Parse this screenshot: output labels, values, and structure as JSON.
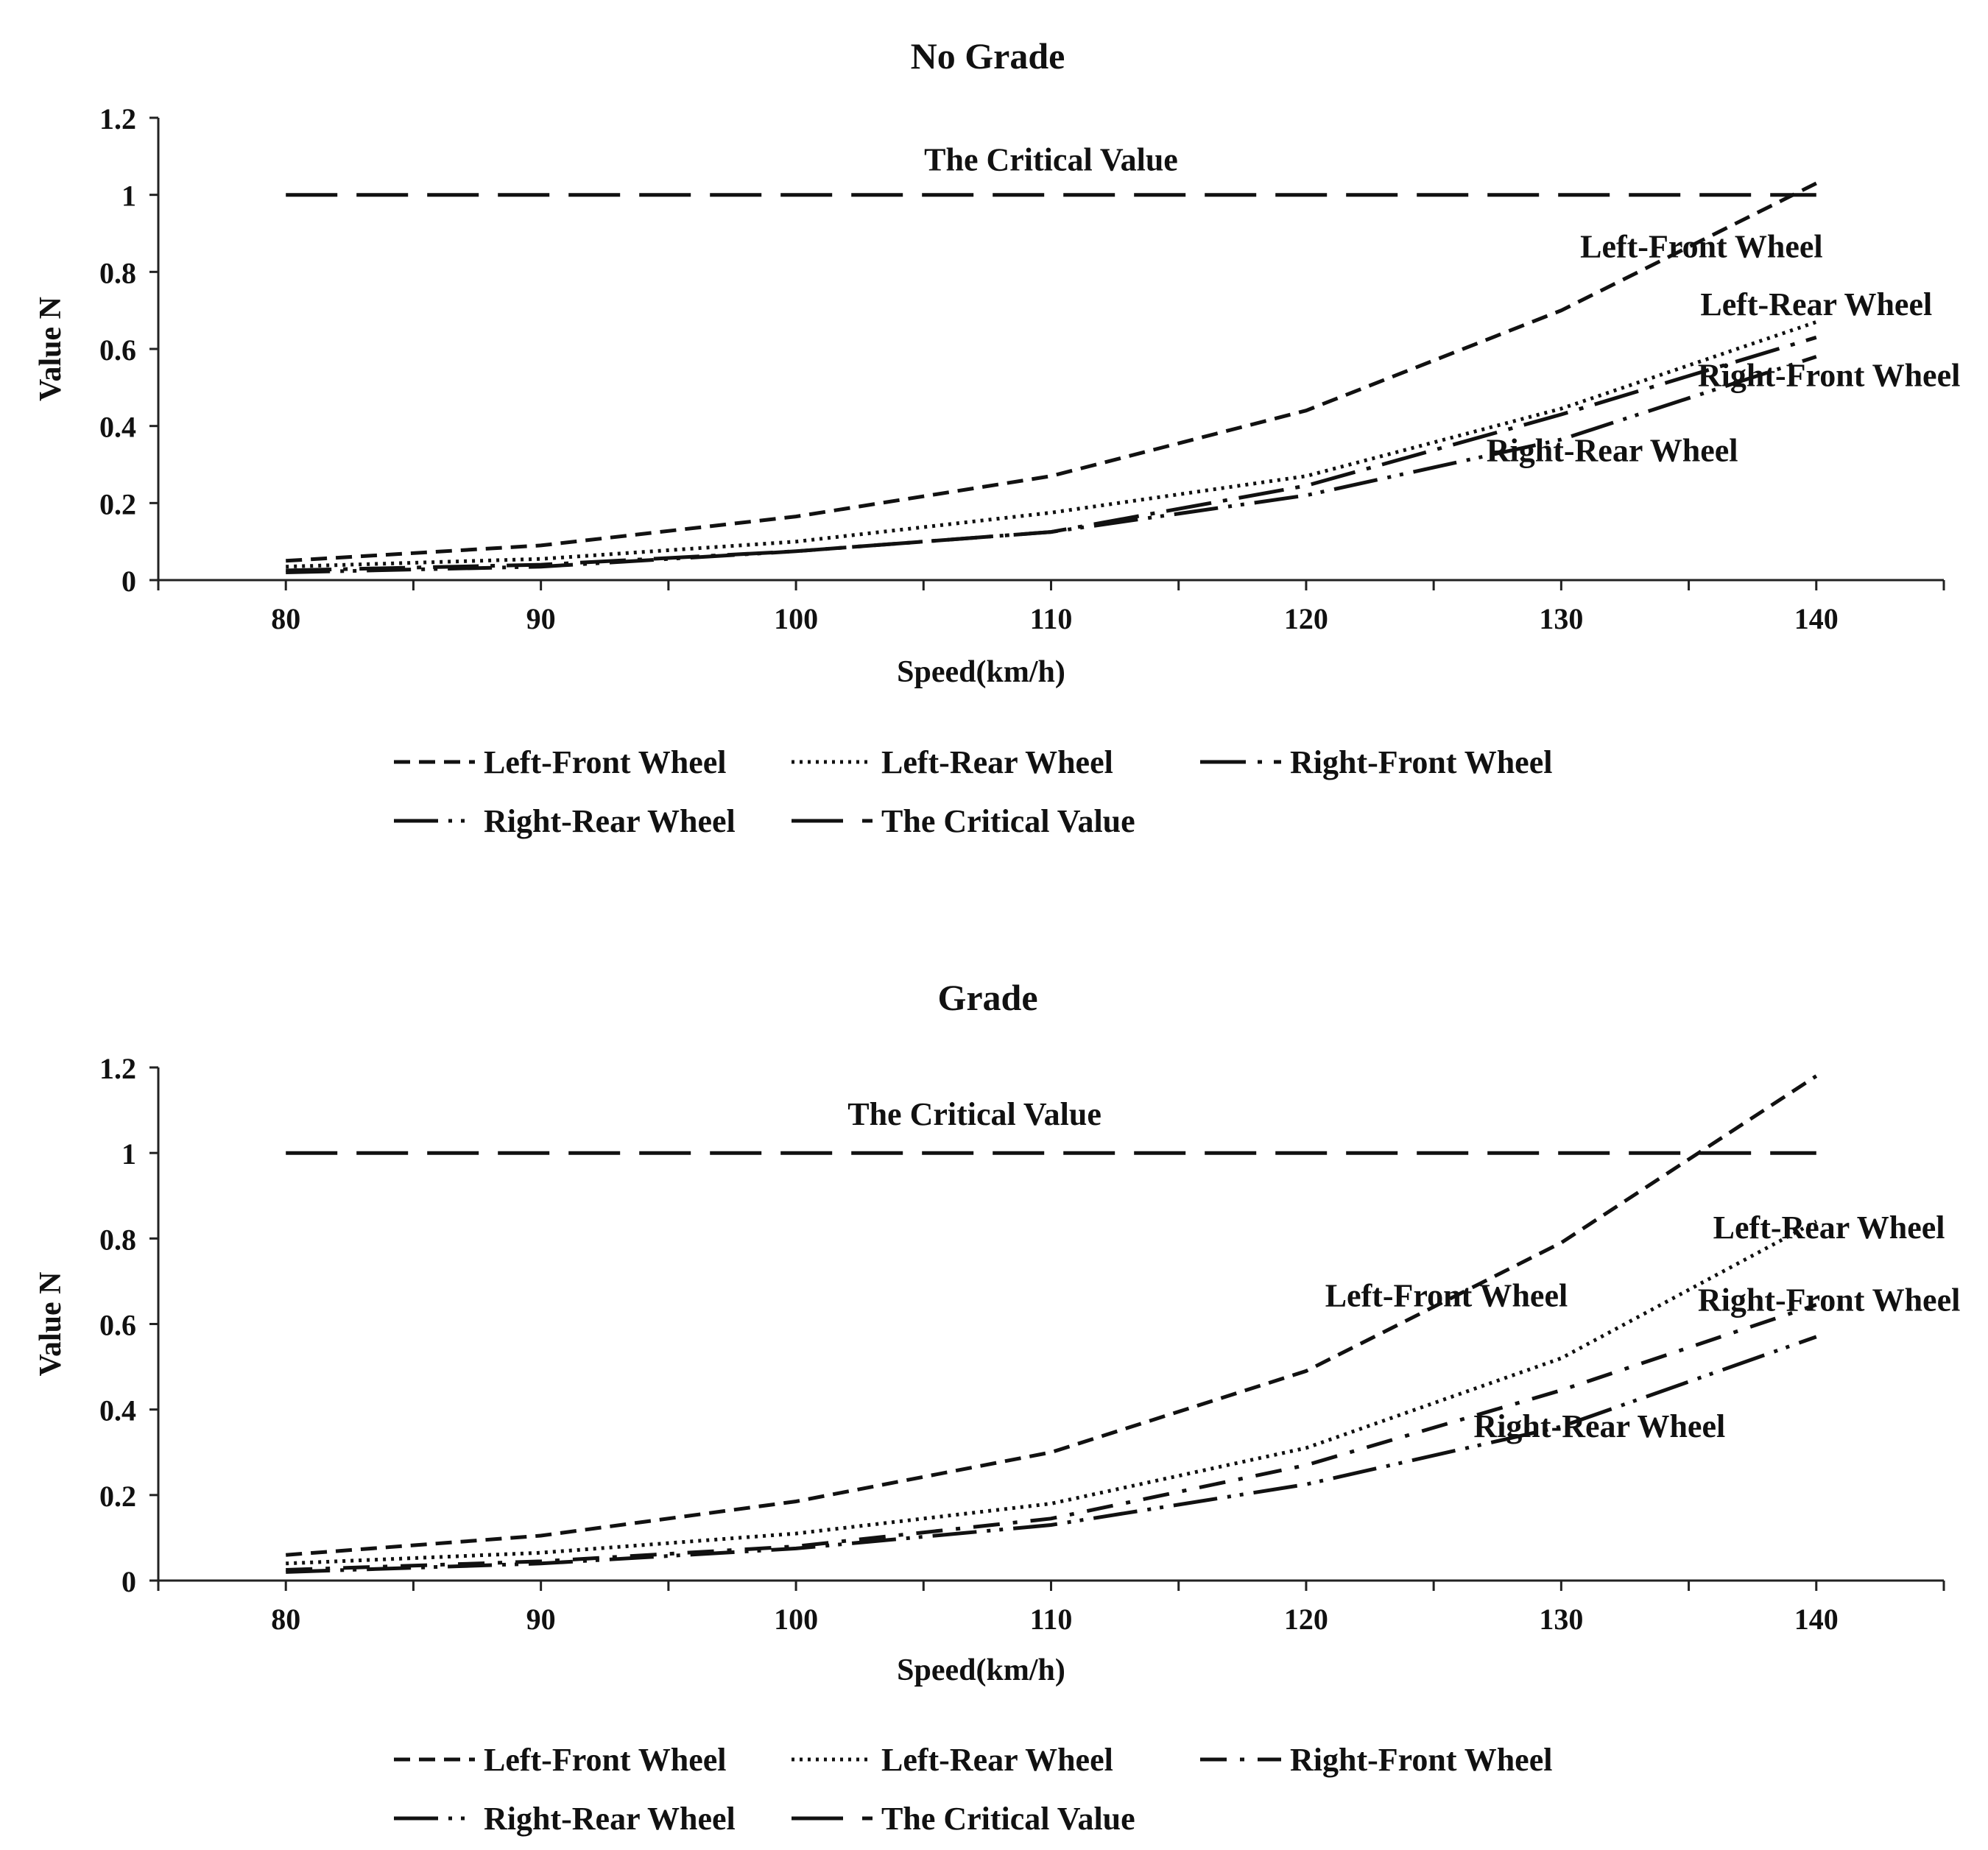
{
  "chart_data": [
    {
      "type": "line",
      "title": "No Grade",
      "xlabel": "Speed(km/h)",
      "ylabel": "Value N",
      "x": [
        80,
        90,
        100,
        110,
        120,
        130,
        140
      ],
      "x_ticks": [
        "80",
        "90",
        "100",
        "110",
        "120",
        "130",
        "140"
      ],
      "y_ticks": [
        "0",
        "0.2",
        "0.4",
        "0.6",
        "0.8",
        "1",
        "1.2"
      ],
      "xlim": [
        75,
        145
      ],
      "ylim": [
        0,
        1.2
      ],
      "grid": false,
      "legend_position": "bottom",
      "series": [
        {
          "name": "Left-Front Wheel",
          "dash": "short-dash",
          "values": [
            0.05,
            0.09,
            0.165,
            0.27,
            0.44,
            0.7,
            1.03
          ]
        },
        {
          "name": "Left-Rear Wheel",
          "dash": "dot",
          "values": [
            0.035,
            0.055,
            0.1,
            0.175,
            0.27,
            0.445,
            0.67
          ]
        },
        {
          "name": "Right-Front Wheel",
          "dash": "long-dash-dot",
          "values": [
            0.025,
            0.04,
            0.075,
            0.125,
            0.245,
            0.43,
            0.63
          ]
        },
        {
          "name": "Right-Rear Wheel",
          "dash": "long-dash-dot-dot",
          "values": [
            0.02,
            0.035,
            0.075,
            0.125,
            0.22,
            0.365,
            0.58
          ]
        },
        {
          "name": "The Critical Value",
          "dash": "long-dash",
          "values": [
            1,
            1,
            1,
            1,
            1,
            1,
            1
          ]
        }
      ],
      "annotations": [
        {
          "text": "The Critical Value",
          "series": "The Critical Value",
          "x": 110,
          "y": 1.09
        },
        {
          "text": "Left-Front Wheel",
          "series": "Left-Front Wheel",
          "x": 135.5,
          "y": 0.865
        },
        {
          "text": "Left-Rear Wheel",
          "series": "Left-Rear Wheel",
          "x": 140,
          "y": 0.715
        },
        {
          "text": "Right-Front Wheel",
          "series": "Right-Front Wheel",
          "x": 140.5,
          "y": 0.53
        },
        {
          "text": "Right-Rear Wheel",
          "series": "Right-Rear Wheel",
          "x": 132,
          "y": 0.335
        }
      ]
    },
    {
      "type": "line",
      "title": "Grade",
      "xlabel": "Speed(km/h)",
      "ylabel": "Value N",
      "x": [
        80,
        90,
        100,
        110,
        120,
        130,
        140
      ],
      "x_ticks": [
        "80",
        "90",
        "100",
        "110",
        "120",
        "130",
        "140"
      ],
      "y_ticks": [
        "0",
        "0.2",
        "0.4",
        "0.6",
        "0.8",
        "1",
        "1.2"
      ],
      "xlim": [
        75,
        145
      ],
      "ylim": [
        0,
        1.2
      ],
      "grid": false,
      "legend_position": "bottom",
      "series": [
        {
          "name": "Left-Front Wheel",
          "dash": "short-dash",
          "values": [
            0.06,
            0.105,
            0.185,
            0.3,
            0.49,
            0.79,
            1.18
          ]
        },
        {
          "name": "Left-Rear Wheel",
          "dash": "dot",
          "values": [
            0.04,
            0.065,
            0.11,
            0.18,
            0.31,
            0.52,
            0.84
          ]
        },
        {
          "name": "Right-Front Wheel",
          "dash": "dash-dot",
          "values": [
            0.025,
            0.045,
            0.08,
            0.145,
            0.27,
            0.445,
            0.645
          ]
        },
        {
          "name": "Right-Rear Wheel",
          "dash": "long-dash-dot-dot",
          "values": [
            0.02,
            0.04,
            0.075,
            0.13,
            0.225,
            0.36,
            0.57
          ]
        },
        {
          "name": "The Critical Value",
          "dash": "long-dash",
          "values": [
            1,
            1,
            1,
            1,
            1,
            1,
            1
          ]
        }
      ],
      "annotations": [
        {
          "text": "The Critical Value",
          "series": "The Critical Value",
          "x": 107,
          "y": 1.09
        },
        {
          "text": "Left-Front Wheel",
          "series": "Left-Front Wheel",
          "x": 125.5,
          "y": 0.665
        },
        {
          "text": "Left-Rear Wheel",
          "series": "Left-Rear Wheel",
          "x": 140.5,
          "y": 0.825
        },
        {
          "text": "Right-Front Wheel",
          "series": "Right-Front Wheel",
          "x": 140.5,
          "y": 0.655
        },
        {
          "text": "Right-Rear Wheel",
          "series": "Right-Rear Wheel",
          "x": 131.5,
          "y": 0.36
        }
      ]
    }
  ]
}
